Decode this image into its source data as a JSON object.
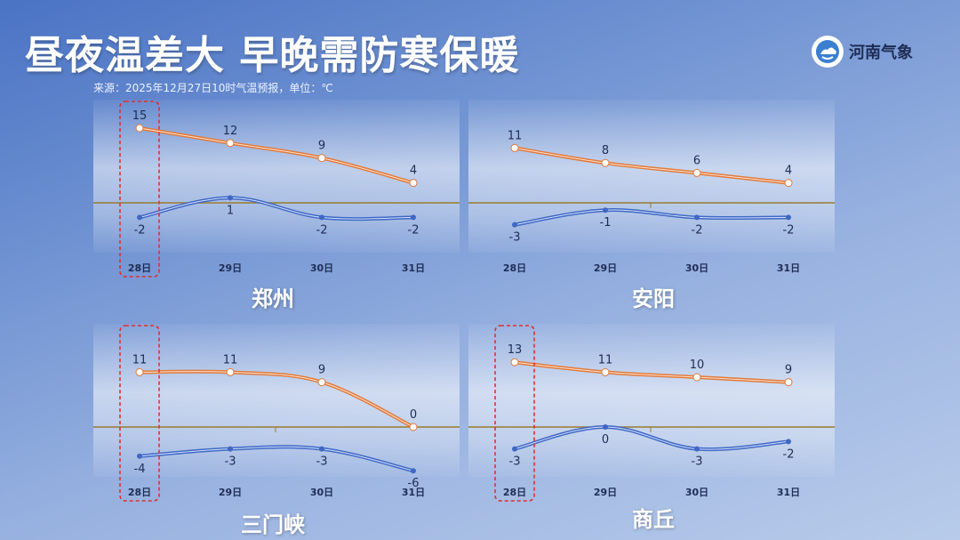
{
  "header": {
    "title": "昼夜温差大 早晚需防寒保暖",
    "source": "来源：2025年12月27日10时气温预报，单位：℃",
    "logo_text": "河南气象"
  },
  "colors": {
    "high_line": "#e07a3c",
    "low_line": "#3f68c4",
    "zero_line": "#9a7b2e",
    "highlight_box": "#e03030",
    "label_text": "#1f2d55"
  },
  "chart_data": [
    {
      "type": "line",
      "title": "郑州",
      "categories": [
        "28日",
        "29日",
        "30日",
        "31日"
      ],
      "series": [
        {
          "values": [
            15,
            12,
            9,
            4
          ]
        },
        {
          "values": [
            -2,
            1,
            -2,
            -2
          ]
        }
      ],
      "highlight_category": "28日"
    },
    {
      "type": "line",
      "title": "安阳",
      "categories": [
        "28日",
        "29日",
        "30日",
        "31日"
      ],
      "series": [
        {
          "values": [
            11,
            8,
            6,
            4
          ]
        },
        {
          "values": [
            -3,
            -1,
            -2,
            -2
          ]
        }
      ]
    },
    {
      "type": "line",
      "title": "三门峡",
      "categories": [
        "28日",
        "29日",
        "30日",
        "31日"
      ],
      "series": [
        {
          "values": [
            11,
            11,
            9,
            0
          ]
        },
        {
          "values": [
            -4,
            -3,
            -3,
            -6
          ]
        }
      ],
      "highlight_category": "28日"
    },
    {
      "type": "line",
      "title": "商丘",
      "categories": [
        "28日",
        "29日",
        "30日",
        "31日"
      ],
      "series": [
        {
          "values": [
            13,
            11,
            10,
            9
          ]
        },
        {
          "values": [
            -3,
            0,
            -3,
            -2
          ]
        }
      ],
      "highlight_category": "28日"
    }
  ]
}
